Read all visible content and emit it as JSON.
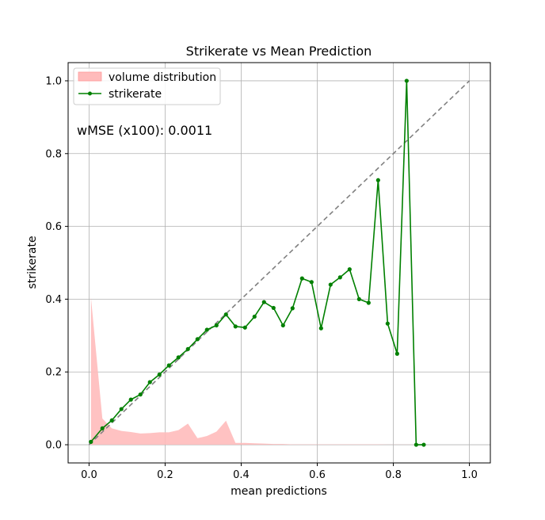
{
  "chart_data": {
    "type": "line",
    "title": "Strikerate vs Mean Prediction",
    "xlabel": "mean predictions",
    "ylabel": "strikerate",
    "xlim": [
      -0.055,
      1.055
    ],
    "ylim": [
      -0.05,
      1.05
    ],
    "xticks": [
      0.0,
      0.2,
      0.4,
      0.6,
      0.8,
      1.0
    ],
    "xtick_labels": [
      "0.0",
      "0.2",
      "0.4",
      "0.6",
      "0.8",
      "1.0"
    ],
    "yticks": [
      0.0,
      0.2,
      0.4,
      0.6,
      0.8,
      1.0
    ],
    "ytick_labels": [
      "0.0",
      "0.2",
      "0.4",
      "0.6",
      "0.8",
      "1.0"
    ],
    "grid": true,
    "legend_position": "top-left",
    "annotation": "wMSE (x100): 0.0011",
    "reference_line": {
      "x": [
        0,
        1
      ],
      "y": [
        0,
        1
      ],
      "style": "dashed",
      "color": "#808080"
    },
    "series": [
      {
        "name": "volume distribution",
        "kind": "area",
        "color": "#ffbbbb",
        "x": [
          0.005,
          0.035,
          0.06,
          0.085,
          0.11,
          0.135,
          0.16,
          0.185,
          0.21,
          0.235,
          0.26,
          0.285,
          0.31,
          0.335,
          0.36,
          0.385,
          0.41,
          0.435,
          0.46,
          0.485,
          0.51,
          0.535,
          0.56,
          0.585,
          0.61,
          0.635,
          0.66,
          0.685,
          0.71,
          0.735,
          0.76,
          0.785,
          0.81,
          0.835,
          0.86,
          0.88
        ],
        "values": [
          0.405,
          0.072,
          0.045,
          0.038,
          0.035,
          0.031,
          0.032,
          0.034,
          0.034,
          0.04,
          0.058,
          0.018,
          0.024,
          0.036,
          0.066,
          0.005,
          0.005,
          0.004,
          0.003,
          0.002,
          0.002,
          0.001,
          0.001,
          0.001,
          0.001,
          0.001,
          0.001,
          0.001,
          0.001,
          0.001,
          0.001,
          0.0005,
          0.0005,
          0.0005,
          0.0005,
          0.0005
        ]
      },
      {
        "name": "strikerate",
        "kind": "line",
        "color": "#008000",
        "x": [
          0.005,
          0.035,
          0.06,
          0.085,
          0.11,
          0.135,
          0.16,
          0.185,
          0.21,
          0.235,
          0.26,
          0.285,
          0.31,
          0.335,
          0.36,
          0.385,
          0.41,
          0.435,
          0.46,
          0.485,
          0.51,
          0.535,
          0.56,
          0.585,
          0.61,
          0.635,
          0.66,
          0.685,
          0.71,
          0.735,
          0.76,
          0.785,
          0.81,
          0.835,
          0.86,
          0.88
        ],
        "values": [
          0.008,
          0.045,
          0.067,
          0.098,
          0.124,
          0.138,
          0.172,
          0.193,
          0.218,
          0.24,
          0.263,
          0.29,
          0.316,
          0.328,
          0.358,
          0.325,
          0.322,
          0.352,
          0.392,
          0.376,
          0.328,
          0.375,
          0.457,
          0.447,
          0.32,
          0.44,
          0.46,
          0.482,
          0.4,
          0.39,
          0.727,
          0.333,
          0.25,
          1.0,
          0.0,
          0.0
        ]
      }
    ]
  }
}
